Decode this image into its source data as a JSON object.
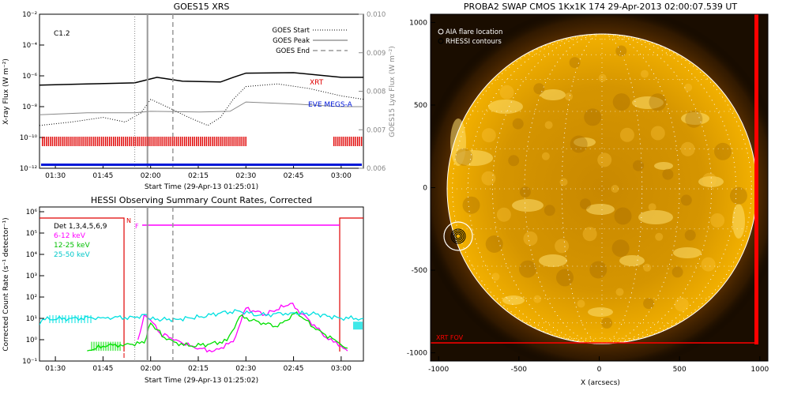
{
  "panels": {
    "goes": {
      "title": "GOES15 XRS",
      "xlabel": "Start Time (29-Apr-13 01:25:01)",
      "ylabel_left": "X-ray Flux (W m⁻²)",
      "ylabel_right": "GOES15 Lyα Flux (W m⁻²)",
      "flare_class": "C1.2",
      "legend": [
        "GOES Start",
        "GOES Peak",
        "GOES End"
      ],
      "tag_xrt": "XRT",
      "tag_eve": "EVE MEGS-A"
    },
    "hessi": {
      "title": "HESSI Observing Summary Count Rates, Corrected",
      "xlabel": "Start Time (29-Apr-13 01:25:02)",
      "ylabel": "Corrected Count Rate (s⁻¹ detector⁻¹)",
      "det_label": "Det 1,3,4,5,6,9",
      "bands": [
        "6-12 keV",
        "12-25 keV",
        "25-50 keV"
      ],
      "marker_n": "N",
      "marker_f": "F"
    },
    "swap": {
      "title": "PROBA2 SWAP CMOS 1Kx1K 174 29-Apr-2013 02:00:07.539 UT",
      "xlabel": "X (arcsecs)",
      "legend": [
        "AIA flare location",
        "RHESSI contours"
      ],
      "fov_label": "XRT FOV"
    }
  },
  "colors": {
    "xrt": "#e00000",
    "eve": "#0018d8",
    "band_6_12": "#ff00ff",
    "band_12_25": "#00e000",
    "band_25_50": "#00e0e0",
    "sun": "#f0a800",
    "fov": "#ff0000"
  },
  "chart_data": [
    {
      "type": "line",
      "title": "GOES15 XRS",
      "xlabel": "Start Time (29-Apr-13 01:25:01)",
      "ylabel": "X-ray Flux (W m⁻²)",
      "y2label": "GOES15 Lyα Flux (W m⁻²)",
      "x_ticks": [
        "01:30",
        "01:45",
        "02:00",
        "02:15",
        "02:30",
        "02:45",
        "03:00"
      ],
      "x_range": [
        "01:25",
        "03:07"
      ],
      "y_ticks": [
        "10⁻²",
        "10⁻⁴",
        "10⁻⁶",
        "10⁻⁸",
        "10⁻¹⁰",
        "10⁻¹²"
      ],
      "y_scale": "log",
      "ylim": [
        1e-12,
        0.01
      ],
      "y2_ticks": [
        "0.010",
        "0.009",
        "0.008",
        "0.007",
        "0.006"
      ],
      "y2lim": [
        0.006,
        0.01
      ],
      "vlines": {
        "GOES Start": "01:55",
        "GOES Peak": "01:59",
        "GOES End": "02:07"
      },
      "legend": [
        "GOES Start",
        "GOES Peak",
        "GOES End"
      ],
      "annotations": [
        "C1.2",
        "XRT",
        "EVE MEGS-A"
      ],
      "series": [
        {
          "name": "",
          "style": "solid-black",
          "x": [
            "01:25",
            "01:40",
            "01:55",
            "01:58",
            "02:02",
            "02:10",
            "02:22",
            "02:26",
            "02:30",
            "02:45",
            "03:00",
            "03:07"
          ],
          "y": [
            2.5e-07,
            3e-07,
            3.5e-07,
            5e-07,
            8e-07,
            4.5e-07,
            4e-07,
            8e-07,
            1.5e-06,
            1.6e-06,
            8e-07,
            8e-07
          ]
        },
        {
          "name": "",
          "style": "gray-solid",
          "x": [
            "01:25",
            "01:40",
            "01:55",
            "02:00",
            "02:15",
            "02:25",
            "02:30",
            "02:45",
            "03:00",
            "03:07"
          ],
          "y": [
            3e-09,
            4e-09,
            4e-09,
            5e-09,
            4.5e-09,
            5e-09,
            2e-08,
            1.5e-08,
            1e-08,
            1e-08
          ]
        },
        {
          "name": "",
          "style": "dotted-black",
          "x": [
            "01:25",
            "01:35",
            "01:45",
            "01:52",
            "01:57",
            "02:00",
            "02:05",
            "02:12",
            "02:18",
            "02:22",
            "02:26",
            "02:30",
            "02:40",
            "02:50",
            "03:00",
            "03:07"
          ],
          "y": [
            6e-10,
            1e-09,
            2e-09,
            1e-09,
            4e-09,
            3e-08,
            1e-08,
            2e-09,
            6e-10,
            2e-09,
            3e-08,
            2e-07,
            3e-07,
            1.5e-07,
            5e-08,
            3e-08
          ]
        }
      ]
    },
    {
      "type": "line",
      "title": "HESSI Observing Summary Count Rates, Corrected",
      "xlabel": "Start Time (29-Apr-13 01:25:02)",
      "ylabel": "Corrected Count Rate (s⁻¹ detector⁻¹)",
      "x_ticks": [
        "01:30",
        "01:45",
        "02:00",
        "02:15",
        "02:30",
        "02:45",
        "03:00"
      ],
      "x_range": [
        "01:25",
        "03:07"
      ],
      "y_ticks": [
        "10⁶",
        "10⁵",
        "10⁴",
        "10³",
        "10²",
        "10¹",
        "10⁰",
        "10⁻¹"
      ],
      "y_scale": "log",
      "ylim": [
        0.1,
        1000000.0
      ],
      "legend": [
        "Det 1,3,4,5,6,9",
        "6-12 keV",
        "12-25 keV",
        "25-50 keV"
      ],
      "series": [
        {
          "name": "6-12 keV",
          "x": [
            "01:56",
            "01:58",
            "02:00",
            "02:03",
            "02:08",
            "02:14",
            "02:20",
            "02:26",
            "02:30",
            "02:36",
            "02:44",
            "02:50",
            "02:56",
            "03:00",
            "03:02"
          ],
          "y": [
            1,
            15,
            8,
            2,
            1,
            0.4,
            0.3,
            0.8,
            30,
            15,
            50,
            8,
            1,
            0.5,
            0.3
          ]
        },
        {
          "name": "12-25 keV",
          "x": [
            "01:40",
            "01:45",
            "01:52",
            "01:58",
            "02:00",
            "02:05",
            "02:12",
            "02:18",
            "02:24",
            "02:28",
            "02:34",
            "02:40",
            "02:46",
            "02:52",
            "02:58",
            "03:02"
          ],
          "y": [
            0.3,
            0.5,
            0.6,
            0.7,
            6,
            1,
            0.5,
            0.6,
            0.9,
            12,
            7,
            4,
            20,
            3,
            1,
            0.4
          ]
        },
        {
          "name": "25-50 keV",
          "x": [
            "01:25",
            "01:26",
            "01:35",
            "01:45",
            "01:55",
            "01:58",
            "02:00",
            "02:08",
            "02:16",
            "02:22",
            "02:28",
            "02:34",
            "02:44",
            "02:52",
            "03:00",
            "03:07"
          ],
          "y": [
            5,
            9,
            10,
            11,
            11,
            15,
            9,
            9,
            12,
            18,
            22,
            14,
            18,
            16,
            10,
            10
          ]
        }
      ],
      "vlines": {
        "GOES Start": "01:55",
        "GOES Peak": "01:59",
        "GOES End": "02:07"
      }
    },
    {
      "type": "heatmap",
      "title": "PROBA2 SWAP CMOS 1Kx1K 174 29-Apr-2013 02:00:07.539 UT",
      "xlabel": "X (arcsecs)",
      "ylabel": "",
      "x_ticks": [
        "-1000",
        "-500",
        "0",
        "500",
        "1000"
      ],
      "y_ticks": [
        "1000",
        "500",
        "0",
        "-500",
        "-1000"
      ],
      "xlim": [
        -1050,
        1050
      ],
      "ylim": [
        -1050,
        1050
      ],
      "legend": [
        "AIA flare location",
        "RHESSI contours"
      ],
      "annotations": [
        "XRT FOV"
      ],
      "flare_location": {
        "x": -920,
        "y": -310
      }
    }
  ]
}
